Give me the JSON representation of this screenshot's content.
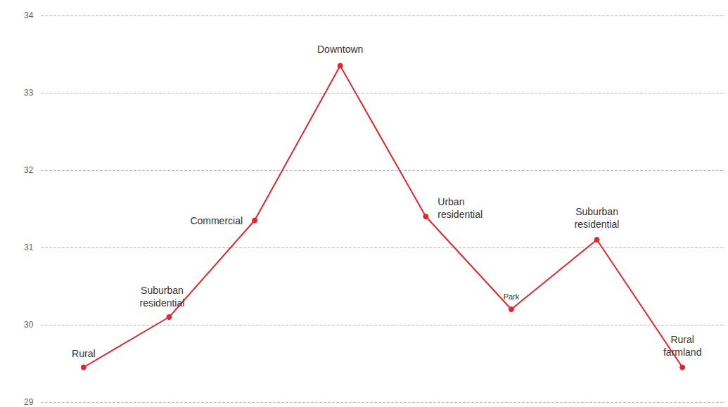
{
  "chart_data": {
    "type": "line",
    "categories": [
      "Rural",
      "Suburban residential",
      "Commercial",
      "Downtown",
      "Urban residential",
      "Park",
      "Suburban residential",
      "Rural farmland"
    ],
    "values": [
      29.45,
      30.1,
      31.35,
      33.35,
      31.4,
      30.2,
      31.1,
      29.45
    ],
    "color": "#e3262d",
    "marker": "circle",
    "ylim": [
      29,
      34
    ],
    "yticks": [
      29,
      30,
      31,
      32,
      33,
      34
    ],
    "grid": true,
    "tick_labels": "y"
  }
}
